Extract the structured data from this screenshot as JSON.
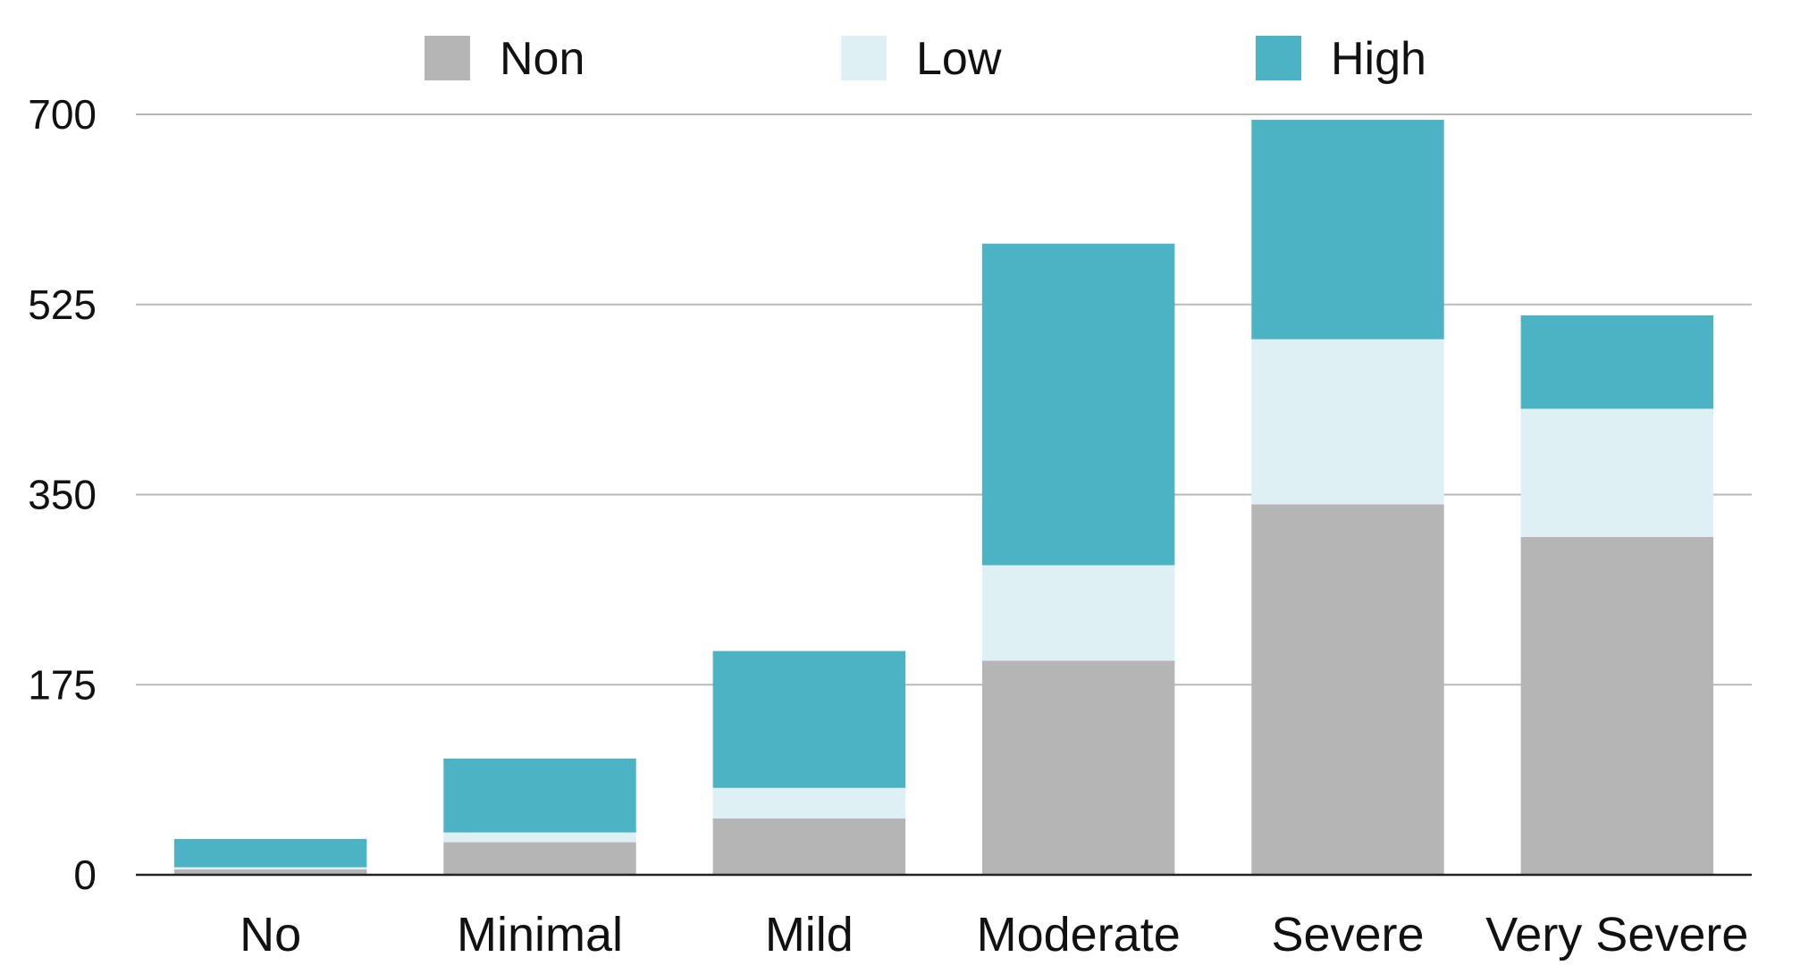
{
  "chart_data": {
    "type": "bar",
    "stacked": true,
    "title": "",
    "xlabel": "",
    "ylabel": "",
    "categories": [
      "No",
      "Minimal",
      "Mild",
      "Moderate",
      "Severe",
      "Very Severe"
    ],
    "series": [
      {
        "name": "Non",
        "color": "#b5b5b5",
        "values": [
          5,
          30,
          52,
          197,
          341,
          311
        ]
      },
      {
        "name": "Low",
        "color": "#dff0f4",
        "values": [
          2,
          9,
          28,
          88,
          152,
          118
        ]
      },
      {
        "name": "High",
        "color": "#4bb3c4",
        "values": [
          26,
          68,
          126,
          296,
          202,
          86
        ]
      }
    ],
    "ylim": [
      0,
      700
    ],
    "yticks": [
      0,
      175,
      350,
      525,
      700
    ],
    "grid": true,
    "legend_position": "top"
  }
}
